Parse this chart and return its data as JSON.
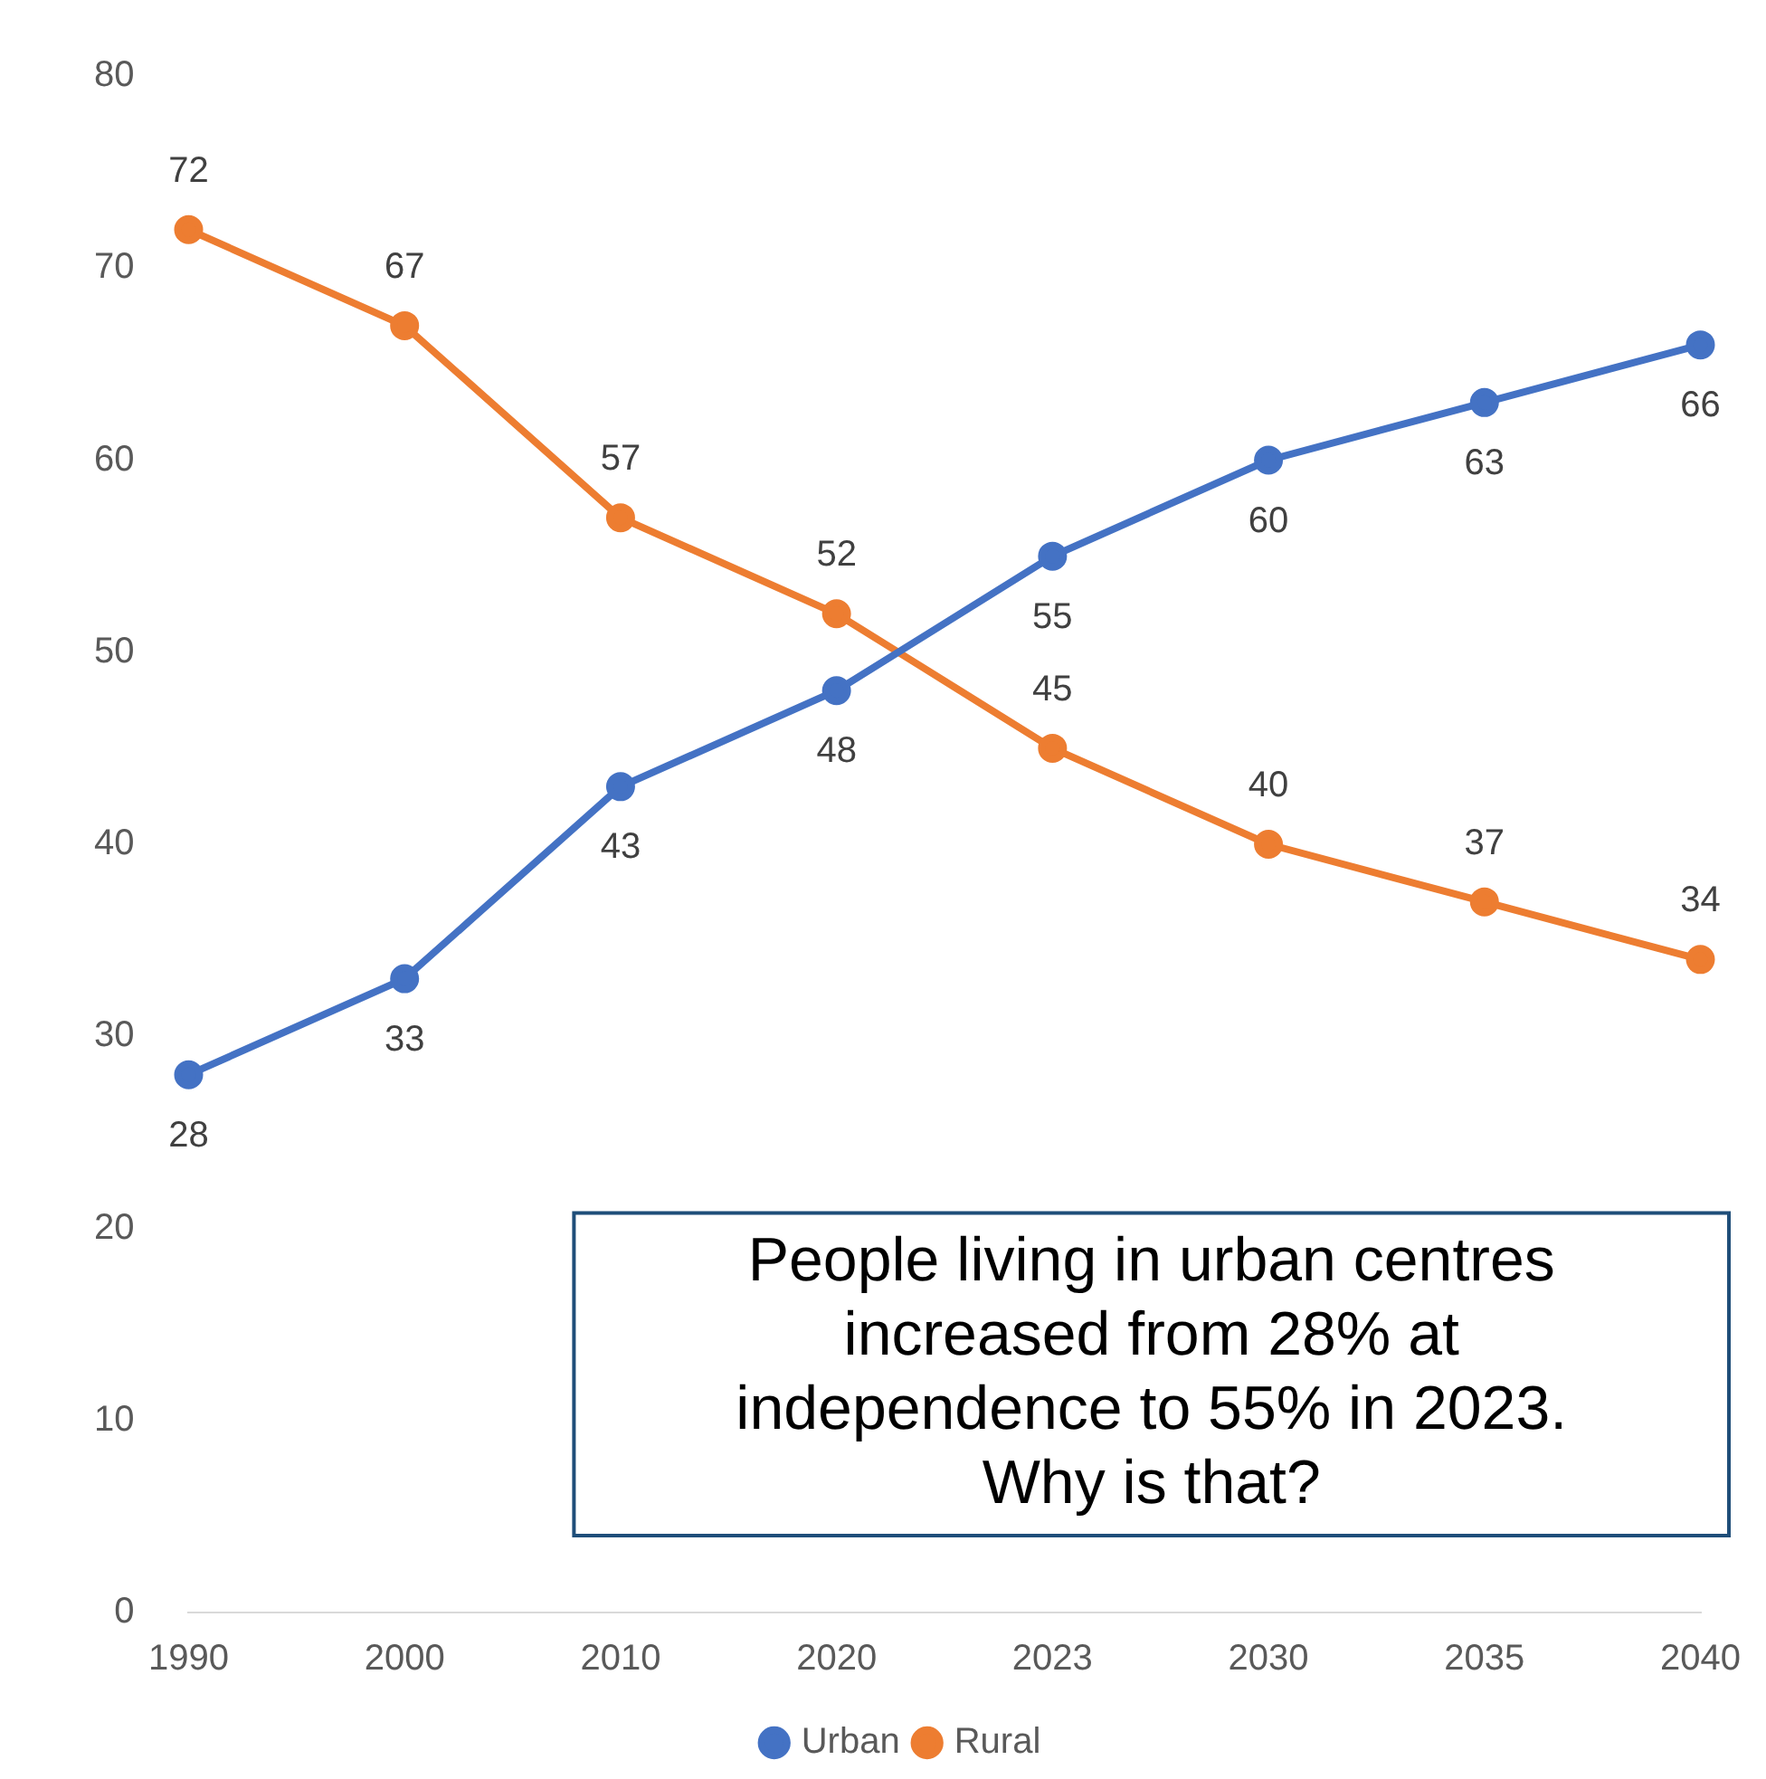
{
  "chart_data": {
    "type": "line",
    "categories": [
      "1990",
      "2000",
      "2010",
      "2020",
      "2023",
      "2030",
      "2035",
      "2040"
    ],
    "series": [
      {
        "name": "Urban",
        "color": "#4472c4",
        "values": [
          28,
          33,
          43,
          48,
          55,
          60,
          63,
          66
        ]
      },
      {
        "name": "Rural",
        "color": "#ed7d31",
        "values": [
          72,
          67,
          57,
          52,
          45,
          40,
          37,
          34
        ]
      }
    ],
    "ylim": [
      0,
      80
    ],
    "yticks": [
      0,
      10,
      20,
      30,
      40,
      50,
      60,
      70,
      80
    ],
    "grid": false,
    "legend": "bottom",
    "marker": "circle",
    "line_style": "solid",
    "data_labels": true,
    "annotations": [
      "People living in urban centres increased from 28% at independence to 55% in 2023. Why is that?"
    ]
  }
}
